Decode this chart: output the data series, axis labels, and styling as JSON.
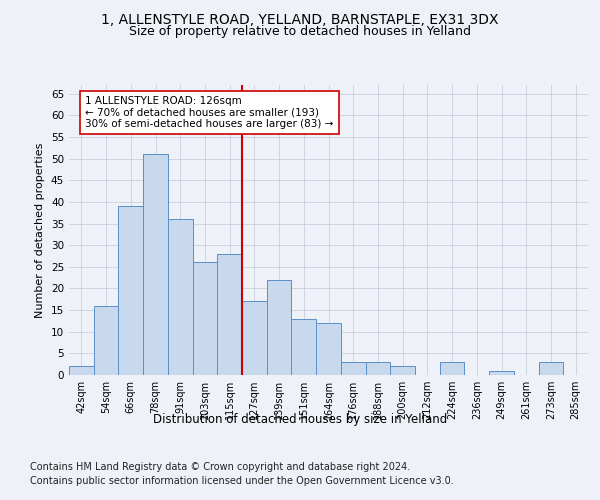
{
  "title_line1": "1, ALLENSTYLE ROAD, YELLAND, BARNSTAPLE, EX31 3DX",
  "title_line2": "Size of property relative to detached houses in Yelland",
  "xlabel": "Distribution of detached houses by size in Yelland",
  "ylabel": "Number of detached properties",
  "categories": [
    "42sqm",
    "54sqm",
    "66sqm",
    "78sqm",
    "91sqm",
    "103sqm",
    "115sqm",
    "127sqm",
    "139sqm",
    "151sqm",
    "164sqm",
    "176sqm",
    "188sqm",
    "200sqm",
    "212sqm",
    "224sqm",
    "236sqm",
    "249sqm",
    "261sqm",
    "273sqm",
    "285sqm"
  ],
  "values": [
    2,
    16,
    39,
    51,
    36,
    26,
    28,
    17,
    22,
    13,
    12,
    3,
    3,
    2,
    0,
    3,
    0,
    1,
    0,
    3,
    0
  ],
  "bar_color": "#c9d9ed",
  "bar_edge_color": "#5b8fc9",
  "vline_x_index": 7,
  "vline_color": "#cc0000",
  "annotation_line1": "1 ALLENSTYLE ROAD: 126sqm",
  "annotation_line2": "← 70% of detached houses are smaller (193)",
  "annotation_line3": "30% of semi-detached houses are larger (83) →",
  "annotation_box_color": "white",
  "annotation_box_edge_color": "#cc0000",
  "ylim": [
    0,
    67
  ],
  "yticks": [
    0,
    5,
    10,
    15,
    20,
    25,
    30,
    35,
    40,
    45,
    50,
    55,
    60,
    65
  ],
  "footer_line1": "Contains HM Land Registry data © Crown copyright and database right 2024.",
  "footer_line2": "Contains public sector information licensed under the Open Government Licence v3.0.",
  "bg_color": "#eef2f8",
  "plot_bg_color": "#eef2f8",
  "grid_color": "#c8d0dc",
  "title_fontsize": 10,
  "subtitle_fontsize": 9,
  "xlabel_fontsize": 8.5,
  "ylabel_fontsize": 8,
  "tick_fontsize": 7,
  "footer_fontsize": 7,
  "annotation_fontsize": 7.5
}
